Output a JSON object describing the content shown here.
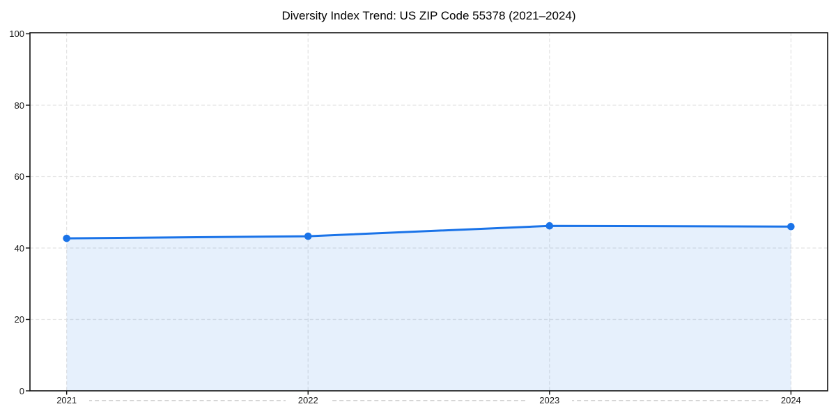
{
  "chart_data": {
    "type": "line",
    "title": "Diversity Index Trend: US ZIP Code 55378 (2021–2024)",
    "x": [
      2021,
      2022,
      2023,
      2024
    ],
    "xtick_labels": [
      "2021",
      "2022",
      "2023",
      "2024"
    ],
    "series": [
      {
        "name": "Diversity Index",
        "values": [
          42.7,
          43.3,
          46.2,
          46.0
        ]
      }
    ],
    "xlabel": "",
    "ylabel": "",
    "ylim": [
      0,
      100
    ],
    "yticks": [
      0,
      20,
      40,
      60,
      80,
      100
    ],
    "grid": "dashed, both axes",
    "legend": "none",
    "area_fill_under_line": true,
    "colors": {
      "line": "#1a73e8",
      "marker": "#1a73e8",
      "area_fill": "rgba(26,115,232,0.11)",
      "grid": "#e3e3e3",
      "spine": "#111111",
      "tick_label": "#1a1a1a",
      "title": "#000000",
      "background": "#ffffff",
      "baseline_dashes": "#d6d6d6"
    }
  }
}
